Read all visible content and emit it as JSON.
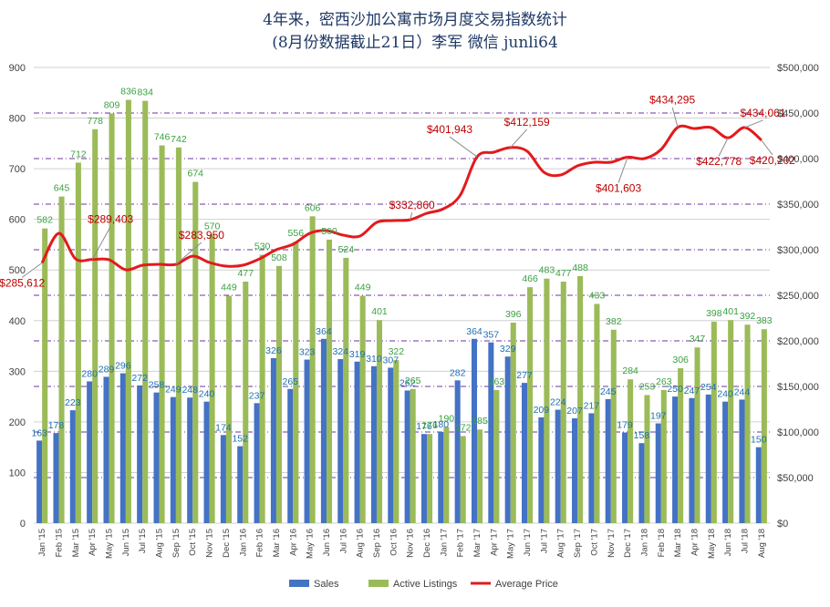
{
  "chart_data": {
    "type": "bar",
    "title": "4年来，密西沙加公寓市场月度交易指数统计",
    "subtitle": "(8月份数据截止21日）李军  微信 junli64",
    "categories": [
      "Jan '15",
      "Feb '15",
      "Mar '15",
      "Apr '15",
      "May '15",
      "Jun '15",
      "Jul '15",
      "Aug '15",
      "Sep '15",
      "Oct '15",
      "Nov '15",
      "Dec '15",
      "Jan '16",
      "Feb '16",
      "Mar '16",
      "Apr '16",
      "May '16",
      "Jun '16",
      "Jul '16",
      "Aug '16",
      "Sep '16",
      "Oct '16",
      "Nov '16",
      "Dec '16",
      "Jan '17",
      "Feb '17",
      "Mar '17",
      "Apr '17",
      "May '17",
      "Jun '17",
      "Jul '17",
      "Aug '17",
      "Sep '17",
      "Oct '17",
      "Nov '17",
      "Dec '17",
      "Jan '18",
      "Feb '18",
      "Mar '18",
      "Apr '18",
      "May '18",
      "Jun '18",
      "Jul '18",
      "Aug '18"
    ],
    "series": [
      {
        "name": "Sales",
        "type": "bar",
        "axis": "left",
        "color": "#4472c4",
        "values": [
          163,
          178,
          223,
          280,
          289,
          296,
          272,
          258,
          249,
          248,
          240,
          174,
          152,
          237,
          326,
          265,
          323,
          364,
          324,
          319,
          310,
          307,
          262,
          176,
          180,
          282,
          364,
          357,
          329,
          277,
          209,
          224,
          207,
          217,
          245,
          179,
          158,
          197,
          250,
          247,
          254,
          240,
          244,
          150
        ]
      },
      {
        "name": "Active Listings",
        "type": "bar",
        "axis": "left",
        "color": "#9bbb59",
        "values": [
          582,
          645,
          712,
          778,
          809,
          836,
          834,
          746,
          742,
          674,
          570,
          449,
          477,
          530,
          508,
          556,
          606,
          560,
          524,
          449,
          401,
          322,
          265,
          176,
          190,
          172,
          185,
          263,
          396,
          466,
          483,
          477,
          488,
          433,
          382,
          284,
          253,
          263,
          306,
          347,
          398,
          401,
          392,
          383
        ]
      },
      {
        "name": "Average Price",
        "type": "line",
        "axis": "right",
        "color": "#e31a1c",
        "values": [
          285612,
          318000,
          290000,
          289403,
          289000,
          278000,
          283000,
          284000,
          283950,
          293000,
          286000,
          282000,
          283000,
          290000,
          300000,
          306000,
          318000,
          321000,
          316000,
          315000,
          330000,
          332000,
          332860,
          340000,
          345000,
          360000,
          401943,
          407000,
          412159,
          408000,
          385000,
          382000,
          392000,
          396000,
          396000,
          401603,
          400000,
          410000,
          434295,
          433000,
          434000,
          422778,
          434061,
          420202
        ]
      }
    ],
    "data_labels": {
      "Average Price": [
        {
          "index": 0,
          "text": "$285,612"
        },
        {
          "index": 3,
          "text": "$289,403"
        },
        {
          "index": 8,
          "text": "$283,950"
        },
        {
          "index": 22,
          "text": "$332,860"
        },
        {
          "index": 26,
          "text": "$401,943"
        },
        {
          "index": 28,
          "text": "$412,159"
        },
        {
          "index": 35,
          "text": "$401,603"
        },
        {
          "index": 38,
          "text": "$434,295"
        },
        {
          "index": 41,
          "text": "$422,778"
        },
        {
          "index": 42,
          "text": "$434,061"
        },
        {
          "index": 43,
          "text": "$420,202"
        }
      ]
    },
    "y_left": {
      "min": 0,
      "max": 900,
      "step": 100,
      "ticks": [
        "0",
        "100",
        "200",
        "300",
        "400",
        "500",
        "600",
        "700",
        "800",
        "900"
      ]
    },
    "y_right": {
      "min": 0,
      "max": 500000,
      "step": 50000,
      "ticks": [
        "$0",
        "$50,000",
        "$100,000",
        "$150,000",
        "$200,000",
        "$250,000",
        "$300,000",
        "$350,000",
        "$400,000",
        "$450,000",
        "$500,000"
      ]
    },
    "grid": {
      "left_axis": true,
      "right_axis_dashed": true,
      "left_color": "#7f7f7f",
      "right_color": "#7030a0"
    },
    "legend": {
      "placement": "bottom",
      "items": [
        "Sales",
        "Active Listings",
        "Average Price"
      ]
    }
  }
}
